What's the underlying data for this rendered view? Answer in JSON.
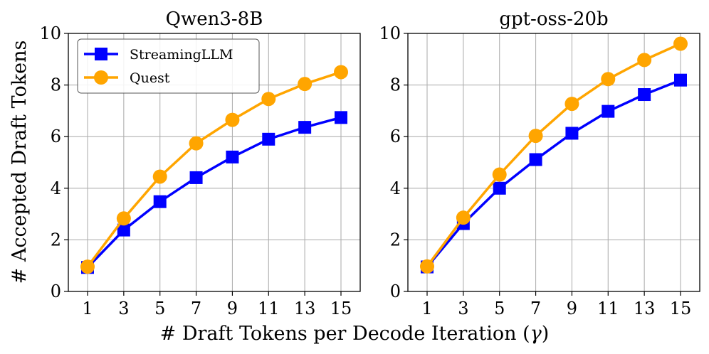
{
  "figure": {
    "shared_ylabel": "# Accepted Draft Tokens",
    "shared_xlabel_prefix": "# Draft Tokens per Decode Iteration (",
    "shared_xlabel_symbol": "γ",
    "shared_xlabel_suffix": ")"
  },
  "colors": {
    "streamingllm": "#0000ff",
    "quest": "#ffa500",
    "grid": "#b0b0b0",
    "axis": "#000000"
  },
  "chart_data": [
    {
      "type": "line",
      "title": "Qwen3-8B",
      "x": [
        1,
        3,
        5,
        7,
        9,
        11,
        13,
        15
      ],
      "xticks": [
        "1",
        "3",
        "5",
        "7",
        "9",
        "11",
        "13",
        "15"
      ],
      "ylim": [
        0,
        10
      ],
      "yticks": [
        "0",
        "2",
        "4",
        "6",
        "8",
        "10"
      ],
      "grid": true,
      "legend": "upper-left",
      "series": [
        {
          "name": "StreamingLLM",
          "marker": "square",
          "values": [
            0.93,
            2.38,
            3.48,
            4.41,
            5.21,
            5.9,
            6.36,
            6.74
          ]
        },
        {
          "name": "Quest",
          "marker": "circle",
          "values": [
            0.96,
            2.83,
            4.45,
            5.74,
            6.65,
            7.46,
            8.04,
            8.5
          ]
        }
      ]
    },
    {
      "type": "line",
      "title": "gpt-oss-20b",
      "x": [
        1,
        3,
        5,
        7,
        9,
        11,
        13,
        15
      ],
      "xticks": [
        "1",
        "3",
        "5",
        "7",
        "9",
        "11",
        "13",
        "15"
      ],
      "ylim": [
        0,
        10
      ],
      "yticks": [
        "0",
        "2",
        "4",
        "6",
        "8",
        "10"
      ],
      "grid": true,
      "legend": "none",
      "series": [
        {
          "name": "StreamingLLM",
          "marker": "square",
          "values": [
            0.95,
            2.63,
            4.0,
            5.11,
            6.13,
            6.98,
            7.63,
            8.19
          ]
        },
        {
          "name": "Quest",
          "marker": "circle",
          "values": [
            0.97,
            2.86,
            4.53,
            6.03,
            7.27,
            8.23,
            8.97,
            9.6
          ]
        }
      ]
    }
  ]
}
